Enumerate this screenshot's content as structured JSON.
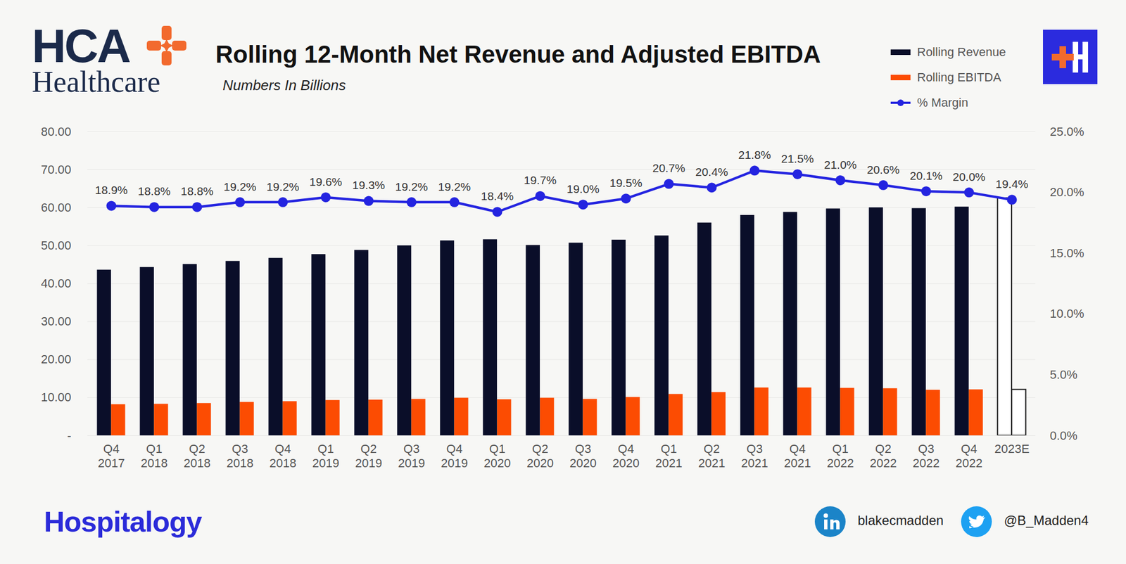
{
  "chart_data": {
    "type": "bar",
    "title": "Rolling 12-Month Net Revenue and Adjusted EBITDA",
    "subtitle": "Numbers In Billions",
    "annotations": [
      "HCA",
      "Healthcare",
      "Hospitalogy",
      "blakecmadden",
      "@B_Madden4"
    ],
    "categories": [
      "Q4 2017",
      "Q1 2018",
      "Q2 2018",
      "Q3 2018",
      "Q4 2018",
      "Q1 2019",
      "Q2 2019",
      "Q3 2019",
      "Q4 2019",
      "Q1 2020",
      "Q2 2020",
      "Q3 2020",
      "Q4 2020",
      "Q1 2021",
      "Q2 2021",
      "Q3 2021",
      "Q4 2021",
      "Q1 2022",
      "Q2 2022",
      "Q3 2022",
      "Q4 2022",
      "2023E"
    ],
    "series": [
      {
        "name": "Rolling Revenue",
        "type": "bar",
        "color": "#0a0e29",
        "values": [
          43.6,
          44.3,
          45.1,
          45.9,
          46.7,
          47.7,
          48.8,
          50.0,
          51.3,
          51.6,
          50.1,
          50.7,
          51.5,
          52.6,
          56.0,
          58.0,
          58.8,
          59.7,
          60.0,
          59.8,
          60.2,
          62.5
        ]
      },
      {
        "name": "Rolling EBITDA",
        "type": "bar",
        "color": "#fc4c02",
        "values": [
          8.2,
          8.3,
          8.5,
          8.8,
          9.0,
          9.3,
          9.4,
          9.6,
          9.9,
          9.5,
          9.9,
          9.6,
          10.1,
          10.9,
          11.4,
          12.6,
          12.6,
          12.5,
          12.4,
          12.0,
          12.1,
          12.1
        ]
      },
      {
        "name": "% Margin",
        "type": "line",
        "color": "#2424e0",
        "marker": "circle",
        "axis": "y2",
        "values": [
          18.9,
          18.8,
          18.8,
          19.2,
          19.2,
          19.6,
          19.3,
          19.2,
          19.2,
          18.4,
          19.7,
          19.0,
          19.5,
          20.7,
          20.4,
          21.8,
          21.5,
          21.0,
          20.6,
          20.1,
          20.0,
          19.4
        ],
        "value_labels": [
          "18.9%",
          "18.8%",
          "18.8%",
          "19.2%",
          "19.2%",
          "19.6%",
          "19.3%",
          "19.2%",
          "19.2%",
          "18.4%",
          "19.7%",
          "19.0%",
          "19.5%",
          "20.7%",
          "20.4%",
          "21.8%",
          "21.5%",
          "21.0%",
          "20.6%",
          "20.1%",
          "20.0%",
          "19.4%"
        ]
      }
    ],
    "ylim": [
      0,
      80
    ],
    "yticks": [
      {
        "value": 0,
        "label": "-"
      },
      {
        "value": 10,
        "label": "10.00"
      },
      {
        "value": 20,
        "label": "20.00"
      },
      {
        "value": 30,
        "label": "30.00"
      },
      {
        "value": 40,
        "label": "40.00"
      },
      {
        "value": 50,
        "label": "50.00"
      },
      {
        "value": 60,
        "label": "60.00"
      },
      {
        "value": 70,
        "label": "70.00"
      },
      {
        "value": 80,
        "label": "80.00"
      }
    ],
    "y2lim": [
      0,
      25
    ],
    "y2ticks": [
      {
        "value": 0,
        "label": "0.0%"
      },
      {
        "value": 5,
        "label": "5.0%"
      },
      {
        "value": 10,
        "label": "10.0%"
      },
      {
        "value": 15,
        "label": "15.0%"
      },
      {
        "value": 20,
        "label": "20.0%"
      },
      {
        "value": 25,
        "label": "25.0%"
      }
    ],
    "grid": true,
    "legend": "top-right"
  }
}
